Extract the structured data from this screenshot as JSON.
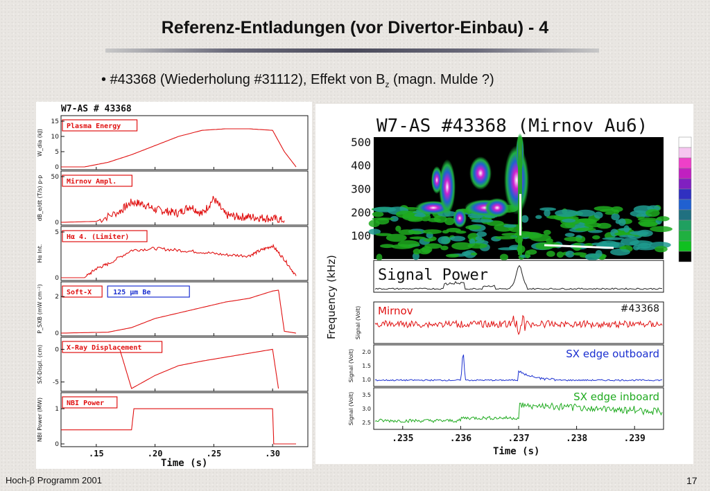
{
  "slide": {
    "title": "Referenz-Entladungen (vor Divertor-Einbau)  - 4",
    "bullet_main": "#43368 (Wiederholung #31112), Effekt von B",
    "bullet_sub": "z",
    "bullet_tail": " (magn. Mulde ?)",
    "footer_left": "Hoch-β Programm 2001",
    "page_number": "17"
  },
  "colors": {
    "trace_red": "#e01010",
    "box_blue": "#1a2fd0",
    "trace_green": "#1faa1f",
    "spectro_bg": "#000000"
  },
  "chart_data": [
    {
      "type": "line",
      "title": "W7-AS # 43368",
      "xlabel": "Time  (s)",
      "xlim": [
        0.12,
        0.33
      ],
      "xticks": [
        ".15",
        ".20",
        ".25",
        ".30"
      ],
      "panels": [
        {
          "label": "Plasma Energy",
          "ylabel": "W_dia (kJ)",
          "ylim": [
            0,
            15
          ],
          "yticks": [
            "0",
            "5",
            "10",
            "15"
          ],
          "x": [
            0.12,
            0.14,
            0.16,
            0.18,
            0.2,
            0.22,
            0.24,
            0.26,
            0.28,
            0.3,
            0.31,
            0.32
          ],
          "y": [
            0,
            0,
            1.5,
            4,
            7,
            10,
            12,
            12.5,
            12.5,
            12,
            5,
            0
          ]
        },
        {
          "label": "Mirnov Ampl.",
          "ylabel": "dB_e/dt (T/s) p-p",
          "ylim": [
            0,
            50
          ],
          "yticks": [
            "0",
            "50"
          ],
          "x": [
            0.12,
            0.15,
            0.17,
            0.18,
            0.19,
            0.2,
            0.21,
            0.22,
            0.23,
            0.24,
            0.25,
            0.26,
            0.27,
            0.28,
            0.29,
            0.3,
            0.31
          ],
          "y": [
            0,
            1,
            12,
            22,
            20,
            14,
            12,
            10,
            18,
            9,
            26,
            8,
            6,
            6,
            5,
            4,
            2
          ]
        },
        {
          "label": "Hα 4. (Limiter)",
          "ylabel": "Hα Int.",
          "ylim": [
            0,
            5
          ],
          "yticks": [
            "0",
            "5"
          ],
          "x": [
            0.12,
            0.14,
            0.15,
            0.16,
            0.18,
            0.2,
            0.22,
            0.24,
            0.26,
            0.28,
            0.29,
            0.3,
            0.31,
            0.32
          ],
          "y": [
            0,
            0,
            1,
            1.5,
            3,
            3.2,
            3,
            2.8,
            2.5,
            2.4,
            3,
            3.5,
            2,
            0.2
          ]
        },
        {
          "label": "Soft-X",
          "extra_label": "125  μm Be",
          "ylabel": "P_SXB (mW cm⁻²)",
          "ylim": [
            0,
            2.5
          ],
          "yticks": [
            "0",
            "2"
          ],
          "x": [
            0.12,
            0.16,
            0.18,
            0.2,
            0.22,
            0.24,
            0.26,
            0.28,
            0.3,
            0.305,
            0.31,
            0.32
          ],
          "y": [
            0,
            0.05,
            0.3,
            0.8,
            1.1,
            1.4,
            1.7,
            1.9,
            2.3,
            2.35,
            0.1,
            0
          ]
        },
        {
          "label": "X-Ray Displacement",
          "ylabel": "SX-Displ. (cm)",
          "ylim": [
            -6,
            1
          ],
          "yticks": [
            "0",
            "-5"
          ],
          "x": [
            0.17,
            0.18,
            0.2,
            0.22,
            0.24,
            0.26,
            0.28,
            0.3,
            0.305
          ],
          "y": [
            0,
            -6,
            -4,
            -2.5,
            -1.8,
            -1.2,
            -0.6,
            0,
            -6
          ]
        },
        {
          "label": "NBI Power",
          "ylabel": "NBI Power (MW)",
          "ylim": [
            0,
            1.3
          ],
          "yticks": [
            "0",
            "1"
          ],
          "x": [
            0.12,
            0.18,
            0.182,
            0.3,
            0.301,
            0.32
          ],
          "y": [
            0.4,
            0.4,
            1.0,
            1.0,
            0,
            0
          ]
        }
      ]
    },
    {
      "type": "heatmap",
      "title": "W7-AS  #43368   (Mirnov Au6)",
      "ylabel": "Frequency  (kHz)",
      "yticks": [
        "500",
        "400",
        "300",
        "200",
        "100"
      ],
      "ylim": [
        0,
        520
      ],
      "bottom_label": "Signal Power"
    },
    {
      "type": "line",
      "xlabel": "Time  (s)",
      "xlim": [
        0.2345,
        0.2395
      ],
      "xticks": [
        ".235",
        ".236",
        ".237",
        ".238",
        ".239"
      ],
      "annotation": "#43368",
      "panels": [
        {
          "label": "Mirnov",
          "ylabel": "Signal (Volt)",
          "yticks": []
        },
        {
          "label": "SX edge outboard",
          "ylabel": "Signal (Volt)",
          "yticks": [
            "2.0",
            "1.5",
            "1.0"
          ]
        },
        {
          "label": "SX edge inboard",
          "ylabel": "Signal (Volt)",
          "yticks": [
            "3.5",
            "3.0",
            "2.5"
          ]
        }
      ]
    }
  ]
}
